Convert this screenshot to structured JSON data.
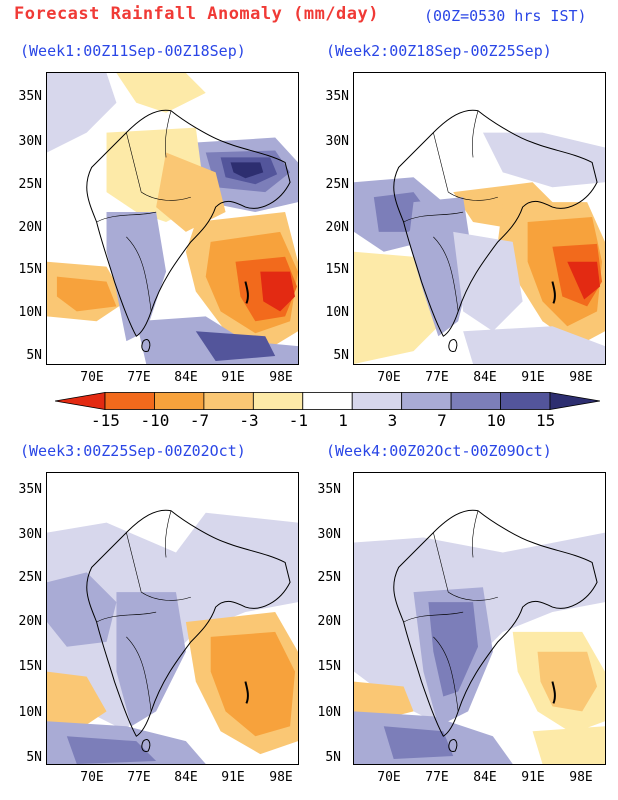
{
  "header": {
    "title": "Forecast Rainfall Anomaly (mm/day)",
    "subtitle": "(00Z=0530 hrs IST)"
  },
  "panels": [
    {
      "label": "(Week1:00Z11Sep-00Z18Sep)"
    },
    {
      "label": "(Week2:00Z18Sep-00Z25Sep)"
    },
    {
      "label": "(Week3:00Z25Sep-00Z02Oct)"
    },
    {
      "label": "(Week4:00Z02Oct-00Z09Oct)"
    }
  ],
  "axes": {
    "lat_ticks": [
      "35N",
      "30N",
      "25N",
      "20N",
      "15N",
      "10N",
      "5N"
    ],
    "lon_ticks": [
      "70E",
      "77E",
      "84E",
      "91E",
      "98E"
    ]
  },
  "colorbar": {
    "labels": [
      "-15",
      "-10",
      "-7",
      "-3",
      "-1",
      "1",
      "3",
      "7",
      "10",
      "15"
    ],
    "colors": [
      "#e32a12",
      "#f26a1c",
      "#f7a23c",
      "#fac774",
      "#fdeaa8",
      "#ffffff",
      "#d7d7ec",
      "#a9abd5",
      "#7c7eb9",
      "#53559b",
      "#2d2e70"
    ]
  }
}
